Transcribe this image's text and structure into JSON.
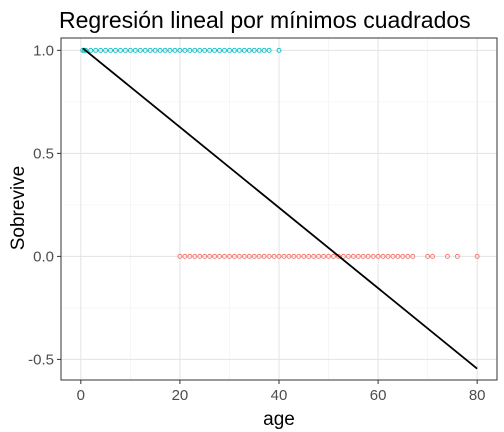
{
  "chart_data": {
    "type": "scatter",
    "title": "Regresión lineal por mínimos cuadrados",
    "xlabel": "age",
    "ylabel": "Sobrevive",
    "xlim": [
      -4,
      84
    ],
    "ylim": [
      -0.6,
      1.06
    ],
    "x_ticks": [
      0,
      20,
      40,
      60,
      80
    ],
    "y_ticks": [
      -0.5,
      0.0,
      0.5,
      1.0
    ],
    "x_tick_labels": [
      "0",
      "20",
      "40",
      "60",
      "80"
    ],
    "y_tick_labels": [
      "-0.5",
      "0.0",
      "0.5",
      "1.0"
    ],
    "grid": true,
    "legend": "none",
    "series": [
      {
        "marker": "open-circle",
        "color": "#00BFC4",
        "x": [
          0.4,
          0.7,
          1,
          2,
          3,
          4,
          5,
          6,
          7,
          8,
          9,
          10,
          11,
          12,
          13,
          14,
          15,
          16,
          17,
          18,
          19,
          20,
          21,
          22,
          23,
          24,
          25,
          26,
          27,
          28,
          29,
          30,
          31,
          32,
          33,
          34,
          35,
          36,
          37,
          38,
          40
        ],
        "y": [
          1,
          1,
          1,
          1,
          1,
          1,
          1,
          1,
          1,
          1,
          1,
          1,
          1,
          1,
          1,
          1,
          1,
          1,
          1,
          1,
          1,
          1,
          1,
          1,
          1,
          1,
          1,
          1,
          1,
          1,
          1,
          1,
          1,
          1,
          1,
          1,
          1,
          1,
          1,
          1,
          1
        ]
      },
      {
        "marker": "open-circle",
        "color": "#F8766D",
        "x": [
          20,
          21,
          22,
          23,
          24,
          25,
          26,
          27,
          28,
          29,
          30,
          31,
          32,
          33,
          34,
          35,
          36,
          37,
          38,
          39,
          40,
          41,
          42,
          43,
          44,
          45,
          46,
          47,
          48,
          49,
          50,
          51,
          52,
          53,
          54,
          55,
          56,
          57,
          58,
          59,
          60,
          61,
          62,
          63,
          64,
          65,
          66,
          67,
          70,
          71,
          74,
          76,
          80
        ],
        "y": [
          0,
          0,
          0,
          0,
          0,
          0,
          0,
          0,
          0,
          0,
          0,
          0,
          0,
          0,
          0,
          0,
          0,
          0,
          0,
          0,
          0,
          0,
          0,
          0,
          0,
          0,
          0,
          0,
          0,
          0,
          0,
          0,
          0,
          0,
          0,
          0,
          0,
          0,
          0,
          0,
          0,
          0,
          0,
          0,
          0,
          0,
          0,
          0,
          0,
          0,
          0,
          0,
          0
        ]
      }
    ],
    "regression_line": {
      "color": "#000000",
      "x": [
        0.42,
        80
      ],
      "y": [
        1.01,
        -0.545
      ]
    }
  }
}
